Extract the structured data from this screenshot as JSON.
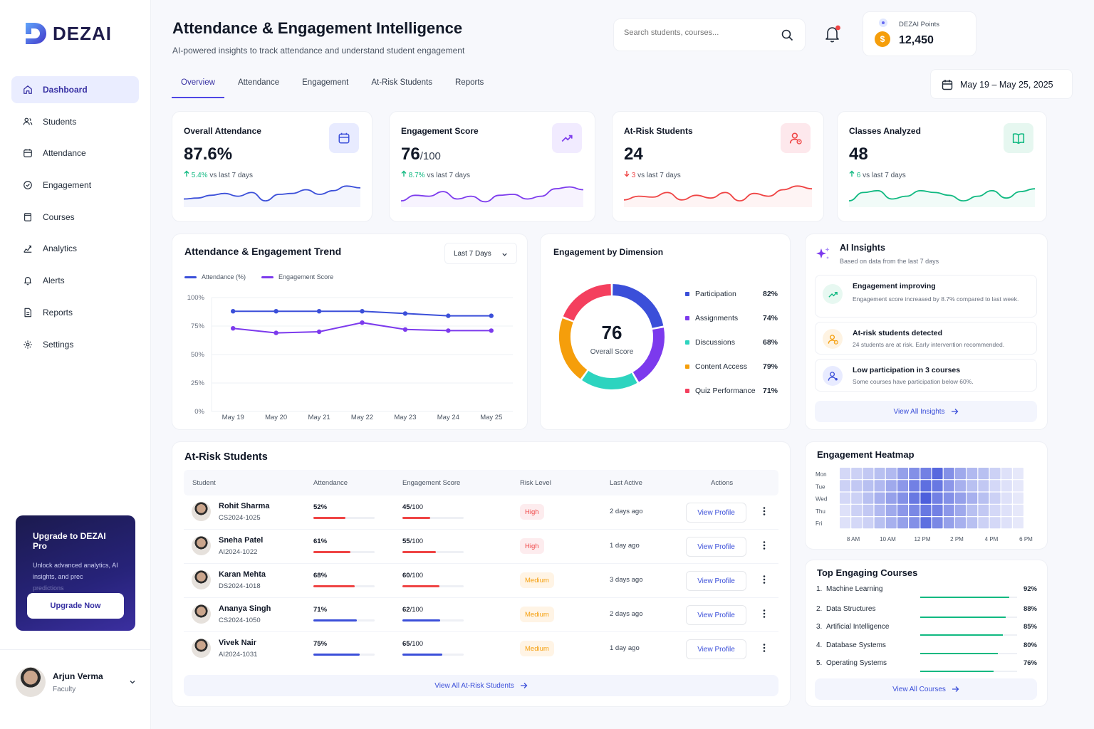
{
  "brand": {
    "name": "DEZAI"
  },
  "sidebar": {
    "items": [
      {
        "label": "Dashboard",
        "icon": "home-icon",
        "active": true
      },
      {
        "label": "Students",
        "icon": "users-icon"
      },
      {
        "label": "Attendance",
        "icon": "calendar-icon"
      },
      {
        "label": "Engagement",
        "icon": "target-icon"
      },
      {
        "label": "Courses",
        "icon": "book-icon"
      },
      {
        "label": "Analytics",
        "icon": "analytics-icon"
      },
      {
        "label": "Alerts",
        "icon": "bell-icon"
      },
      {
        "label": "Reports",
        "icon": "document-icon"
      },
      {
        "label": "Settings",
        "icon": "gear-icon"
      }
    ],
    "upgrade": {
      "title": "Upgrade to DEZAI Pro",
      "desc": "Unlock advanced analytics, AI insights, and prec",
      "desc_faded": "predictions",
      "button": "Upgrade Now"
    },
    "user": {
      "name": "Arjun Verma",
      "role": "Faculty"
    }
  },
  "header": {
    "title": "Attendance & Engagement Intelligence",
    "subtitle": "AI-powered insights to track attendance and understand student engagement",
    "search_placeholder": "Search students, courses...",
    "points_label": "DEZAI Points",
    "points_value": "12,450",
    "date_range": "May 19 – May 25, 2025"
  },
  "tabs": [
    "Overview",
    "Attendance",
    "Engagement",
    "At-Risk Students",
    "Reports"
  ],
  "kpis": [
    {
      "title": "Overall Attendance",
      "value": "87.6%",
      "unit": "",
      "delta": "5.4%",
      "delta_text": "vs last 7 days",
      "direction": "up",
      "color": "#3b4fd9",
      "icon": "calendar-icon"
    },
    {
      "title": "Engagement Score",
      "value": "76",
      "unit": "/100",
      "delta": "8.7%",
      "delta_text": "vs last 7 days",
      "direction": "up",
      "color": "#7c3aed",
      "icon": "trending-up-icon"
    },
    {
      "title": "At-Risk Students",
      "value": "24",
      "unit": "",
      "delta": "3",
      "delta_text": "vs last 7 days",
      "direction": "down",
      "color": "#ef4444",
      "icon": "user-alert-icon"
    },
    {
      "title": "Classes Analyzed",
      "value": "48",
      "unit": "",
      "delta": "6",
      "delta_text": "vs last 7 days",
      "direction": "up",
      "color": "#10b981",
      "icon": "open-book-icon"
    }
  ],
  "trend": {
    "title": "Attendance & Engagement Trend",
    "range_select": "Last 7 Days",
    "legend": [
      "Attendance (%)",
      "Engagement Score"
    ]
  },
  "chart_data": [
    {
      "type": "line",
      "title": "Attendance & Engagement Trend",
      "x": [
        "May 19",
        "May 20",
        "May 21",
        "May 22",
        "May 23",
        "May 24",
        "May 25"
      ],
      "yticks": [
        "100%",
        "75%",
        "50%",
        "25%",
        "0%"
      ],
      "ylim": [
        0,
        100
      ],
      "series": [
        {
          "name": "Attendance (%)",
          "color": "#3b4fd9",
          "x_index": [
            0.5,
            1.5,
            2.5,
            3.5,
            4.5,
            5.5,
            6.5
          ],
          "values": [
            88,
            88,
            88,
            88,
            86,
            84,
            84
          ]
        },
        {
          "name": "Engagement Score",
          "color": "#7c3aed",
          "values": [
            73,
            69,
            70,
            78,
            72,
            71,
            71
          ]
        }
      ]
    },
    {
      "type": "pie",
      "title": "Engagement by Dimension",
      "center_value": "76",
      "center_label": "Overall Score",
      "categories": [
        "Participation",
        "Assignments",
        "Discussions",
        "Content Access",
        "Quiz Performance"
      ],
      "values": [
        82,
        74,
        68,
        79,
        71
      ],
      "labels": [
        "82%",
        "74%",
        "68%",
        "79%",
        "71%"
      ],
      "colors": [
        "#3b4fd9",
        "#7c3aed",
        "#2dd4bf",
        "#f59e0b",
        "#f43f5e"
      ]
    },
    {
      "type": "heatmap",
      "title": "Engagement Heatmap",
      "rows": [
        "Mon",
        "Tue",
        "Wed",
        "Thu",
        "Fri"
      ],
      "x_labels": [
        "8 AM",
        "10 AM",
        "12 PM",
        "2 PM",
        "4 PM",
        "6 PM"
      ],
      "values": [
        [
          0.15,
          0.2,
          0.25,
          0.3,
          0.35,
          0.5,
          0.6,
          0.7,
          0.85,
          0.6,
          0.45,
          0.35,
          0.3,
          0.2,
          0.1,
          0.05
        ],
        [
          0.2,
          0.25,
          0.3,
          0.35,
          0.45,
          0.55,
          0.7,
          0.8,
          0.75,
          0.55,
          0.4,
          0.3,
          0.25,
          0.15,
          0.1,
          0.05
        ],
        [
          0.15,
          0.2,
          0.3,
          0.4,
          0.5,
          0.6,
          0.75,
          0.9,
          0.7,
          0.6,
          0.5,
          0.4,
          0.3,
          0.2,
          0.1,
          0.05
        ],
        [
          0.1,
          0.2,
          0.25,
          0.35,
          0.45,
          0.55,
          0.65,
          0.75,
          0.7,
          0.55,
          0.45,
          0.3,
          0.25,
          0.15,
          0.1,
          0.05
        ],
        [
          0.1,
          0.15,
          0.2,
          0.3,
          0.4,
          0.5,
          0.6,
          0.8,
          0.65,
          0.5,
          0.4,
          0.3,
          0.2,
          0.15,
          0.1,
          0.05
        ]
      ]
    }
  ],
  "insights": {
    "title": "AI Insights",
    "subtitle": "Based on data from the last 7 days",
    "items": [
      {
        "title": "Engagement improving",
        "desc": "Engagement score increased by 8.7% compared to last week.",
        "icon": "trending-up-icon",
        "color": "#10b981",
        "bg": "#e7f8f1"
      },
      {
        "title": "At-risk students detected",
        "desc": "24 students are at risk. Early intervention recommended.",
        "icon": "user-alert-icon",
        "color": "#f59e0b",
        "bg": "#fef3e2"
      },
      {
        "title": "Low participation in 3 courses",
        "desc": "Some courses have participation below 60%.",
        "icon": "user-icon",
        "color": "#3b4fd9",
        "bg": "#e8ebff"
      }
    ],
    "view_all": "View All Insights"
  },
  "at_risk": {
    "title": "At-Risk Students",
    "columns": [
      "Student",
      "Attendance",
      "Engagement Score",
      "Risk Level",
      "Last Active",
      "Actions"
    ],
    "rows": [
      {
        "name": "Rohit Sharma",
        "id": "CS2024-1025",
        "attendance": "52%",
        "att_value": 0.52,
        "score": "45",
        "score_value": 0.45,
        "risk": "High",
        "last_active": "2 days ago"
      },
      {
        "name": "Sneha Patel",
        "id": "AI2024-1022",
        "attendance": "61%",
        "att_value": 0.61,
        "score": "55",
        "score_value": 0.55,
        "risk": "High",
        "last_active": "1 day ago"
      },
      {
        "name": "Karan Mehta",
        "id": "DS2024-1018",
        "attendance": "68%",
        "att_value": 0.68,
        "score": "60",
        "score_value": 0.6,
        "risk": "Medium",
        "last_active": "3 days ago"
      },
      {
        "name": "Ananya Singh",
        "id": "CS2024-1050",
        "attendance": "71%",
        "att_value": 0.71,
        "score": "62",
        "score_value": 0.62,
        "risk": "Medium",
        "last_active": "2 days ago"
      },
      {
        "name": "Vivek Nair",
        "id": "AI2024-1031",
        "attendance": "75%",
        "att_value": 0.75,
        "score": "65",
        "score_value": 0.65,
        "risk": "Medium",
        "last_active": "1 day ago"
      }
    ],
    "score_suffix": "/100",
    "view_profile": "View Profile",
    "view_all": "View All At-Risk Students"
  },
  "courses": {
    "title": "Top Engaging Courses",
    "items": [
      {
        "rank": "1.",
        "name": "Machine Learning",
        "value": "92%",
        "fraction": 0.92
      },
      {
        "rank": "2.",
        "name": "Data Structures",
        "value": "88%",
        "fraction": 0.88
      },
      {
        "rank": "3.",
        "name": "Artificial Intelligence",
        "value": "85%",
        "fraction": 0.85
      },
      {
        "rank": "4.",
        "name": "Database Systems",
        "value": "80%",
        "fraction": 0.8
      },
      {
        "rank": "5.",
        "name": "Operating Systems",
        "value": "76%",
        "fraction": 0.76
      }
    ],
    "view_all": "View All Courses"
  }
}
